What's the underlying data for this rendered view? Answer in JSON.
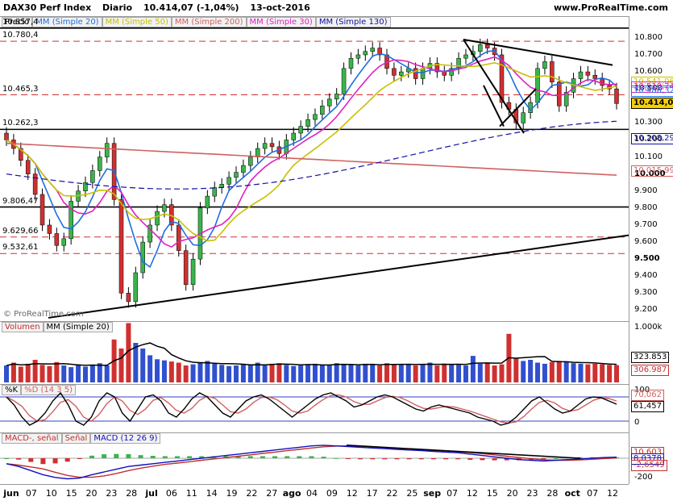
{
  "header": {
    "instrument": "DAX30 Perf Index",
    "period": "Diario",
    "price_change": "10.414,07  (-1,04%)",
    "date": "13-oct-2016",
    "site": "www.ProRealTime.com"
  },
  "price_pane": {
    "legend": [
      {
        "label": "Precio",
        "color": "#000000"
      },
      {
        "label": "MM (Simple 20)",
        "color": "#1e6fe0"
      },
      {
        "label": "MM (Simple 50)",
        "color": "#c8c000"
      },
      {
        "label": "MM (Simple 200)",
        "color": "#d06060"
      },
      {
        "label": "MM (Simple 30)",
        "color": "#e020c0"
      },
      {
        "label": "MM (Simple 130)",
        "color": "#1010a0"
      }
    ],
    "left_levels": [
      "10.857,4",
      "10.780,4",
      "10.465,3",
      "10.262,3",
      "9.806,47",
      "9.629,66",
      "9.532,61"
    ],
    "axis_ticks": [
      "10.800",
      "10.700",
      "10.600",
      "10.500",
      "10.400",
      "10.300",
      "10.200",
      "10.100",
      "10.000",
      "9.900",
      "9.800",
      "9.700",
      "9.600",
      "9.500",
      "9.400",
      "9.300",
      "9.200"
    ],
    "price_boxes": [
      {
        "text": "10.541,06",
        "color": "#c8c000"
      },
      {
        "text": "10.510,74",
        "color": "#e020c0"
      },
      {
        "text": "10.486,32",
        "color": "#1e6fe0"
      },
      {
        "text": "10.414,07",
        "color": "#000000"
      },
      {
        "text": "10.208,29",
        "color": "#1010a0"
      },
      {
        "text": "10.015,99",
        "color": "#d06060"
      }
    ],
    "watermark": "© ProRealTime.com"
  },
  "volume_pane": {
    "legend": [
      {
        "label": "Volumen",
        "color": "#c03030"
      },
      {
        "label": "MM (Simple 20)",
        "color": "#000000"
      }
    ],
    "axis_ticks": [
      "1.000k"
    ],
    "value_boxes": [
      {
        "text": "323.853",
        "color": "#000000"
      },
      {
        "text": "306.987",
        "color": "#c03030"
      }
    ]
  },
  "stoch_pane": {
    "legend": [
      {
        "label": "%K",
        "color": "#000000"
      },
      {
        "label": "%D (14 3 5)",
        "color": "#d06060"
      }
    ],
    "axis_ticks": [
      "100",
      "0"
    ],
    "value_boxes": [
      {
        "text": "70,062",
        "color": "#d06060"
      },
      {
        "text": "61,457",
        "color": "#000000"
      }
    ]
  },
  "macd_pane": {
    "legend": [
      {
        "label": "MACD-, señal",
        "color": "#c03030"
      },
      {
        "label": "Señal",
        "color": "#c03030"
      },
      {
        "label": "MACD (12 26 9)",
        "color": "#1010c0"
      }
    ],
    "axis_ticks": [
      "-200"
    ],
    "value_boxes": [
      {
        "text": "10,603",
        "color": "#c03030"
      },
      {
        "text": "8,0378",
        "color": "#1010c0"
      },
      {
        "text": "-2,6549",
        "color": "#c03030"
      }
    ]
  },
  "x_axis": [
    "jun",
    "07",
    "10",
    "15",
    "20",
    "23",
    "28",
    "jul",
    "06",
    "11",
    "14",
    "19",
    "22",
    "27",
    "ago",
    "04",
    "09",
    "12",
    "17",
    "22",
    "25",
    "sep",
    "07",
    "12",
    "15",
    "20",
    "23",
    "28",
    "oct",
    "07",
    "12"
  ],
  "chart_data": {
    "type": "candlestick",
    "title": "DAX30 Perf Index Diario",
    "ylim": [
      9150,
      10880
    ],
    "close_values": [
      10200,
      10150,
      10080,
      10000,
      9880,
      9700,
      9650,
      9580,
      9620,
      9840,
      9900,
      9950,
      10020,
      10100,
      10180,
      9850,
      9300,
      9250,
      9420,
      9600,
      9700,
      9780,
      9820,
      9700,
      9550,
      9350,
      9500,
      9800,
      9870,
      9920,
      9940,
      9980,
      10010,
      10050,
      10100,
      10150,
      10180,
      10160,
      10120,
      10200,
      10240,
      10280,
      10320,
      10350,
      10400,
      10440,
      10470,
      10620,
      10680,
      10700,
      10720,
      10740,
      10700,
      10620,
      10580,
      10600,
      10620,
      10560,
      10620,
      10650,
      10600,
      10580,
      10620,
      10680,
      10700,
      10720,
      10760,
      10740,
      10700,
      10420,
      10380,
      10300,
      10360,
      10420,
      10620,
      10660,
      10540,
      10400,
      10480,
      10560,
      10600,
      10580,
      10560,
      10520,
      10500,
      10414
    ],
    "volume_values": [
      300,
      350,
      280,
      330,
      400,
      310,
      290,
      360,
      300,
      270,
      320,
      280,
      310,
      340,
      300,
      760,
      600,
      1050,
      700,
      600,
      480,
      410,
      390,
      370,
      350,
      300,
      320,
      360,
      380,
      330,
      310,
      290,
      300,
      320,
      310,
      350,
      300,
      330,
      340,
      310,
      290,
      300,
      320,
      330,
      300,
      310,
      340,
      320,
      310,
      300,
      330,
      320,
      300,
      340,
      310,
      320,
      330,
      300,
      320,
      350,
      300,
      330,
      320,
      310,
      300,
      470,
      330,
      340,
      300,
      320,
      860,
      420,
      380,
      400,
      350,
      330,
      360,
      380,
      370,
      340,
      330,
      320,
      330,
      320,
      310,
      307
    ],
    "stoch_k": [
      80,
      60,
      30,
      10,
      20,
      40,
      70,
      90,
      60,
      20,
      10,
      30,
      70,
      90,
      80,
      40,
      20,
      50,
      80,
      85,
      70,
      40,
      30,
      50,
      75,
      90,
      80,
      60,
      40,
      30,
      50,
      70,
      80,
      85,
      75,
      60,
      45,
      30,
      45,
      60,
      75,
      85,
      90,
      80,
      70,
      55,
      60,
      70,
      80,
      85,
      80,
      70,
      60,
      50,
      45,
      55,
      60,
      55,
      50,
      45,
      40,
      30,
      25,
      20,
      10,
      15,
      30,
      50,
      70,
      80,
      65,
      50,
      40,
      45,
      60,
      75,
      80,
      78,
      70,
      62
    ],
    "macd": [
      -40,
      -60,
      -90,
      -120,
      -140,
      -150,
      -145,
      -120,
      -100,
      -80,
      -60,
      -50,
      -40,
      -30,
      -20,
      -10,
      0,
      10,
      20,
      30,
      40,
      50,
      60,
      70,
      80,
      90,
      95,
      90,
      85,
      80,
      75,
      70,
      65,
      60,
      55,
      50,
      45,
      40,
      30,
      20,
      10,
      0,
      -10,
      -15,
      -20,
      -15,
      -10,
      -5,
      0,
      5,
      8
    ],
    "y_axis_ticks": [
      10800,
      10700,
      10600,
      10500,
      10400,
      10300,
      10200,
      10100,
      10000,
      9900,
      9800,
      9700,
      9600,
      9500,
      9400,
      9300,
      9200
    ]
  }
}
